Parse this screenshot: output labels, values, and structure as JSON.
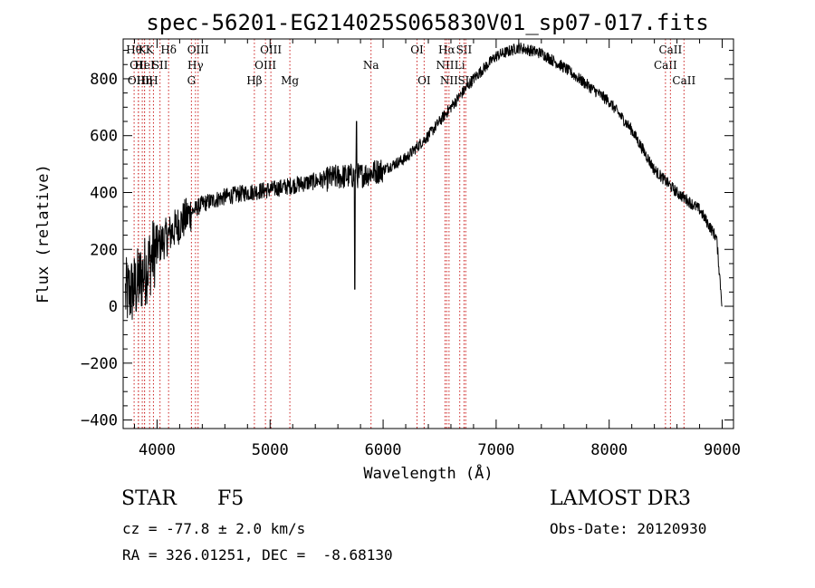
{
  "chart_data": {
    "type": "line",
    "title": "spec-56201-EG214025S065830V01_sp07-017.fits",
    "xlabel": "Wavelength (Å)",
    "ylabel": "Flux (relative)",
    "xlim": [
      3700,
      9100
    ],
    "ylim": [
      -430,
      940
    ],
    "xticks": [
      4000,
      5000,
      6000,
      7000,
      8000,
      9000
    ],
    "yticks": [
      -400,
      -200,
      0,
      200,
      400,
      600,
      800
    ],
    "grid": false,
    "continuum_points": [
      {
        "x": 3720,
        "y": 40
      },
      {
        "x": 3800,
        "y": 60
      },
      {
        "x": 3900,
        "y": 130
      },
      {
        "x": 4000,
        "y": 210
      },
      {
        "x": 4100,
        "y": 250
      },
      {
        "x": 4200,
        "y": 290
      },
      {
        "x": 4300,
        "y": 330
      },
      {
        "x": 4400,
        "y": 360
      },
      {
        "x": 4600,
        "y": 385
      },
      {
        "x": 4800,
        "y": 400
      },
      {
        "x": 5000,
        "y": 410
      },
      {
        "x": 5200,
        "y": 425
      },
      {
        "x": 5400,
        "y": 440
      },
      {
        "x": 5600,
        "y": 455
      },
      {
        "x": 5800,
        "y": 460
      },
      {
        "x": 6000,
        "y": 480
      },
      {
        "x": 6200,
        "y": 520
      },
      {
        "x": 6400,
        "y": 600
      },
      {
        "x": 6600,
        "y": 700
      },
      {
        "x": 6800,
        "y": 800
      },
      {
        "x": 7000,
        "y": 880
      },
      {
        "x": 7200,
        "y": 910
      },
      {
        "x": 7400,
        "y": 890
      },
      {
        "x": 7600,
        "y": 840
      },
      {
        "x": 7800,
        "y": 780
      },
      {
        "x": 8000,
        "y": 720
      },
      {
        "x": 8200,
        "y": 620
      },
      {
        "x": 8400,
        "y": 480
      },
      {
        "x": 8600,
        "y": 400
      },
      {
        "x": 8800,
        "y": 340
      },
      {
        "x": 8950,
        "y": 240
      },
      {
        "x": 9000,
        "y": 0
      }
    ],
    "features": [
      {
        "x": 5750,
        "y": 60
      },
      {
        "x": 5765,
        "y": 650
      }
    ],
    "line_markers": [
      {
        "x": 3797,
        "label": "Hθ",
        "row": 0
      },
      {
        "x": 3835,
        "label": "OII",
        "row": 1
      },
      {
        "x": 3835,
        "label": "OIII",
        "row": 2
      },
      {
        "x": 3869,
        "label": "K",
        "row": 0
      },
      {
        "x": 3889,
        "label": "HeI",
        "row": 1
      },
      {
        "x": 3889,
        "label": "Hη",
        "row": 2
      },
      {
        "x": 3934,
        "label": "K",
        "row": 0
      },
      {
        "x": 3968,
        "label": "H",
        "row": 2
      },
      {
        "x": 4026,
        "label": "SII",
        "row": 1
      },
      {
        "x": 4102,
        "label": "Hδ",
        "row": 0
      },
      {
        "x": 4304,
        "label": "G",
        "row": 2
      },
      {
        "x": 4340,
        "label": "Hγ",
        "row": 1
      },
      {
        "x": 4363,
        "label": "OIII",
        "row": 0
      },
      {
        "x": 4861,
        "label": "Hβ",
        "row": 2
      },
      {
        "x": 4959,
        "label": "OIII",
        "row": 1
      },
      {
        "x": 5007,
        "label": "OIII",
        "row": 0
      },
      {
        "x": 5175,
        "label": "Mg",
        "row": 2
      },
      {
        "x": 5893,
        "label": "Na",
        "row": 1
      },
      {
        "x": 6300,
        "label": "OI",
        "row": 0
      },
      {
        "x": 6363,
        "label": "OI",
        "row": 2
      },
      {
        "x": 6548,
        "label": "NII",
        "row": 1
      },
      {
        "x": 6563,
        "label": "Hα",
        "row": 0
      },
      {
        "x": 6583,
        "label": "NII",
        "row": 2
      },
      {
        "x": 6678,
        "label": "Li",
        "row": 1
      },
      {
        "x": 6716,
        "label": "SII",
        "row": 0
      },
      {
        "x": 6731,
        "label": "SII",
        "row": 2
      },
      {
        "x": 8498,
        "label": "CaII",
        "row": 1
      },
      {
        "x": 8542,
        "label": "CaII",
        "row": 0
      },
      {
        "x": 8662,
        "label": "CaII",
        "row": 2
      }
    ]
  },
  "info": {
    "object_class": "STAR",
    "subclass": "F5",
    "survey": "LAMOST DR3",
    "redshift": "cz = -77.8 ± 2.0 km/s",
    "obs_date": "Obs-Date: 20120930",
    "coords": "RA = 326.01251, DEC =  -8.68130"
  },
  "colors": {
    "spectrum": "#000000",
    "marker_line": "#cc2222"
  }
}
